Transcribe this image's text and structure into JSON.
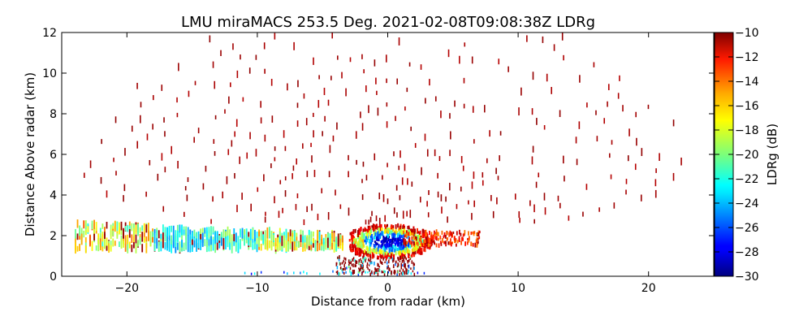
{
  "chart_data": {
    "type": "heatmap",
    "title": "LMU miraMACS 253.5 Deg. 2021-02-08T09:08:38Z  LDRg",
    "xlabel": "Distance from radar (km)",
    "ylabel": "Distance Above radar  (km)",
    "xlim": [
      -25,
      25
    ],
    "ylim": [
      0,
      12
    ],
    "xticks": [
      "−20",
      "−10",
      "0",
      "10",
      "20"
    ],
    "xtick_values": [
      -20,
      -10,
      0,
      10,
      20
    ],
    "yticks": [
      "0",
      "2",
      "4",
      "6",
      "8",
      "10",
      "12"
    ],
    "ytick_values": [
      0,
      2,
      4,
      6,
      8,
      10,
      12
    ],
    "grid": false,
    "colorbar": {
      "label": "LDRg (dB)",
      "range": [
        -30,
        -10
      ],
      "ticks": [
        "−10",
        "−12",
        "−14",
        "−16",
        "−18",
        "−20",
        "−22",
        "−24",
        "−26",
        "−28",
        "−30"
      ],
      "tick_values": [
        -10,
        -12,
        -14,
        -16,
        -18,
        -20,
        -22,
        -24,
        -26,
        -28,
        -30
      ],
      "colormap": "jet"
    },
    "features": [
      {
        "name": "low-level band",
        "x_range": [
          -24,
          3
        ],
        "y_range": [
          1.0,
          2.6
        ],
        "ldr_range": [
          -24,
          -16
        ]
      },
      {
        "name": "core near radar",
        "x_range": [
          -3,
          3
        ],
        "y_range": [
          0.9,
          2.5
        ],
        "ldr_range": [
          -28,
          -20
        ]
      },
      {
        "name": "scattered echoes aloft",
        "x_range": [
          -24,
          23
        ],
        "y_range": [
          2.5,
          12
        ],
        "ldr_range": [
          -11,
          -10
        ]
      }
    ]
  }
}
